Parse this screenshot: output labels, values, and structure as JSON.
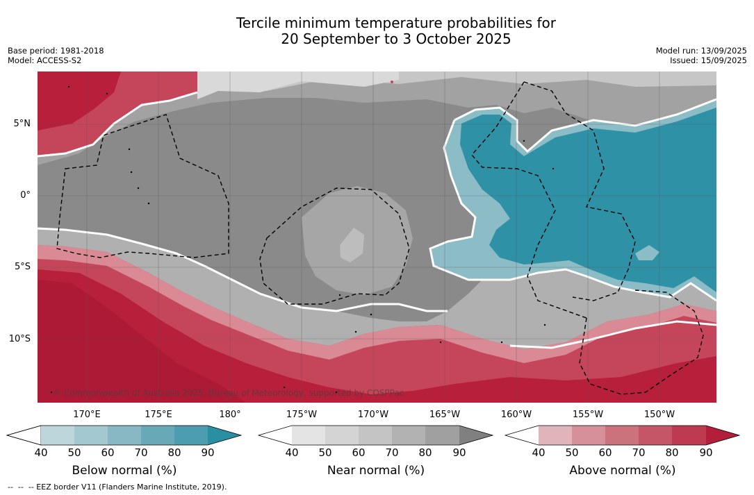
{
  "title": {
    "line1": "Tercile minimum temperature probabilities for",
    "line2": "20 September to 3 October 2025"
  },
  "meta_left": {
    "base_period": "Base period: 1981-2018",
    "model": "Model: ACCESS-S2"
  },
  "meta_right": {
    "model_run": "Model run: 13/09/2025",
    "issued": "Issued: 15/09/2025"
  },
  "map": {
    "lat_labels": [
      "5°N",
      "0°",
      "5°S",
      "10°S"
    ],
    "lon_labels": [
      "170°E",
      "175°E",
      "180°",
      "175°W",
      "170°W",
      "165°W",
      "160°W",
      "155°W",
      "150°W"
    ],
    "copyright": "© Commonwealth of Australia 2025, Bureau of Meteorology, supported by COSPPac",
    "colors": {
      "dry_red_dark": "#b71f3b",
      "red_mid": "#c5465a",
      "red_light": "#d98a94",
      "grey_dark": "#8a8a8a",
      "grey_mid": "#a2a2a2",
      "grey_light": "#c6c6c6",
      "teal_dark": "#2f91a5",
      "teal_light": "#8cbcc6"
    }
  },
  "colorbars": [
    {
      "label": "Below normal (%)",
      "ticks": [
        "40",
        "50",
        "60",
        "70",
        "80",
        "90"
      ],
      "colors": [
        "#bcd6dc",
        "#a3c8d0",
        "#88b8c4",
        "#68a9b8",
        "#4c9daf",
        "#2b8fa3"
      ]
    },
    {
      "label": "Near normal (%)",
      "ticks": [
        "40",
        "50",
        "60",
        "70",
        "80",
        "90"
      ],
      "colors": [
        "#e4e4e4",
        "#d4d4d4",
        "#c4c4c4",
        "#b2b2b2",
        "#a0a0a0",
        "#808080"
      ]
    },
    {
      "label": "Above normal (%)",
      "ticks": [
        "40",
        "50",
        "60",
        "70",
        "80",
        "90"
      ],
      "colors": [
        "#e0b4ba",
        "#d59099",
        "#cc727d",
        "#c45667",
        "#bd3a50",
        "#b31e3a"
      ]
    }
  ],
  "footnote": "--  --  -- EEZ border V11 (Flanders Marine Institute, 2019)."
}
